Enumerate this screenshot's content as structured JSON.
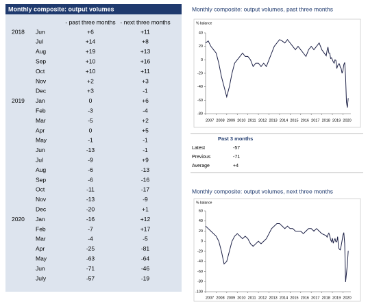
{
  "table": {
    "title": "Monthly composite: output volumes",
    "columns": [
      "- past three months",
      "- next three months"
    ],
    "rows": [
      {
        "year": "2018",
        "month": "Jun",
        "past": "+6",
        "next": "+11"
      },
      {
        "month": "Jul",
        "past": "+14",
        "next": "+8"
      },
      {
        "month": "Aug",
        "past": "+19",
        "next": "+13"
      },
      {
        "month": "Sep",
        "past": "+10",
        "next": "+16"
      },
      {
        "month": "Oct",
        "past": "+10",
        "next": "+11"
      },
      {
        "month": "Nov",
        "past": "+2",
        "next": "+3"
      },
      {
        "month": "Dec",
        "past": "+3",
        "next": "-1"
      },
      {
        "year": "2019",
        "month": "Jan",
        "past": "0",
        "next": "+6"
      },
      {
        "month": "Feb",
        "past": "-3",
        "next": "-4"
      },
      {
        "month": "Mar",
        "past": "-5",
        "next": "+2"
      },
      {
        "month": "Apr",
        "past": "0",
        "next": "+5"
      },
      {
        "month": "May",
        "past": "-1",
        "next": "-1"
      },
      {
        "month": "Jun",
        "past": "-13",
        "next": "-1"
      },
      {
        "month": "Jul",
        "past": "-9",
        "next": "+9"
      },
      {
        "month": "Aug",
        "past": "-6",
        "next": "-13"
      },
      {
        "month": "Sep",
        "past": "-6",
        "next": "-16"
      },
      {
        "month": "Oct",
        "past": "-11",
        "next": "-17"
      },
      {
        "month": "Nov",
        "past": "-13",
        "next": "-9"
      },
      {
        "month": "Dec",
        "past": "-20",
        "next": "+1"
      },
      {
        "year": "2020",
        "month": "Jan",
        "past": "-16",
        "next": "+12"
      },
      {
        "month": "Feb",
        "past": "-7",
        "next": "+17"
      },
      {
        "month": "Mar",
        "past": "-4",
        "next": "-5"
      },
      {
        "month": "Apr",
        "past": "-25",
        "next": "-81"
      },
      {
        "month": "May",
        "past": "-63",
        "next": "-64"
      },
      {
        "month": "Jun",
        "past": "-71",
        "next": "-46"
      },
      {
        "month": "July",
        "past": "-57",
        "next": "-19"
      }
    ]
  },
  "summary": {
    "title": "Past 3 months",
    "rows": [
      {
        "label": "Latest",
        "value": "-57"
      },
      {
        "label": "Previous",
        "value": "-71"
      },
      {
        "label": "Average",
        "value": "+4"
      }
    ]
  },
  "chart_data": [
    {
      "type": "line",
      "title": "Monthly composite: output volumes, past three months",
      "y_label": "% balance",
      "color": "#1b1f45",
      "x": [
        2007,
        2007.25,
        2007.5,
        2007.75,
        2008,
        2008.25,
        2008.5,
        2008.75,
        2009,
        2009.25,
        2009.5,
        2009.75,
        2010,
        2010.25,
        2010.5,
        2010.75,
        2011,
        2011.25,
        2011.5,
        2011.75,
        2012,
        2012.25,
        2012.5,
        2012.75,
        2013,
        2013.25,
        2013.5,
        2013.75,
        2014,
        2014.25,
        2014.5,
        2014.75,
        2015,
        2015.25,
        2015.5,
        2015.75,
        2016,
        2016.25,
        2016.5,
        2016.75,
        2017,
        2017.25,
        2017.5,
        2017.75,
        2018,
        2018.417,
        2018.5,
        2018.583,
        2018.667,
        2018.75,
        2018.833,
        2018.917,
        2019,
        2019.083,
        2019.167,
        2019.25,
        2019.333,
        2019.417,
        2019.5,
        2019.583,
        2019.667,
        2019.75,
        2019.833,
        2019.917,
        2020,
        2020.083,
        2020.167,
        2020.25,
        2020.333,
        2020.417,
        2020.5
      ],
      "values": [
        25,
        28,
        20,
        15,
        10,
        -5,
        -25,
        -40,
        -55,
        -40,
        -20,
        -5,
        0,
        5,
        10,
        5,
        5,
        0,
        -10,
        -5,
        -5,
        -10,
        -5,
        -10,
        0,
        10,
        20,
        25,
        30,
        28,
        25,
        30,
        25,
        20,
        15,
        20,
        15,
        10,
        5,
        15,
        20,
        15,
        20,
        25,
        15,
        6,
        14,
        19,
        10,
        10,
        2,
        3,
        0,
        -3,
        -5,
        0,
        -1,
        -13,
        -9,
        -6,
        -6,
        -11,
        -13,
        -20,
        -16,
        -7,
        -4,
        -25,
        -63,
        -71,
        -57
      ],
      "xlim": [
        2007,
        2020.75
      ],
      "xticks": [
        2007,
        2008,
        2009,
        2010,
        2011,
        2012,
        2013,
        2014,
        2015,
        2016,
        2017,
        2018,
        2019,
        2020
      ],
      "ylim": [
        -80,
        40
      ],
      "yticks": [
        40,
        20,
        0,
        -20,
        -40,
        -60,
        -80
      ]
    },
    {
      "type": "line",
      "title": "Monthly composite: output volumes, next three months",
      "y_label": "% balance",
      "color": "#1b1f45",
      "x": [
        2007,
        2007.25,
        2007.5,
        2007.75,
        2008,
        2008.25,
        2008.5,
        2008.75,
        2009,
        2009.25,
        2009.5,
        2009.75,
        2010,
        2010.25,
        2010.5,
        2010.75,
        2011,
        2011.25,
        2011.5,
        2011.75,
        2012,
        2012.25,
        2012.5,
        2012.75,
        2013,
        2013.25,
        2013.5,
        2013.75,
        2014,
        2014.25,
        2014.5,
        2014.75,
        2015,
        2015.25,
        2015.5,
        2015.75,
        2016,
        2016.25,
        2016.5,
        2016.75,
        2017,
        2017.25,
        2017.5,
        2017.75,
        2018,
        2018.417,
        2018.5,
        2018.583,
        2018.667,
        2018.75,
        2018.833,
        2018.917,
        2019,
        2019.083,
        2019.167,
        2019.25,
        2019.333,
        2019.417,
        2019.5,
        2019.583,
        2019.667,
        2019.75,
        2019.833,
        2019.917,
        2020,
        2020.083,
        2020.167,
        2020.25,
        2020.333,
        2020.417,
        2020.5
      ],
      "values": [
        30,
        25,
        20,
        15,
        10,
        0,
        -20,
        -45,
        -40,
        -20,
        0,
        10,
        15,
        10,
        5,
        10,
        5,
        -5,
        -10,
        -5,
        0,
        -5,
        0,
        5,
        15,
        25,
        30,
        35,
        35,
        30,
        25,
        30,
        25,
        25,
        20,
        20,
        20,
        15,
        20,
        25,
        25,
        20,
        25,
        20,
        15,
        11,
        8,
        13,
        16,
        11,
        3,
        -1,
        6,
        -4,
        2,
        5,
        -1,
        -1,
        9,
        -13,
        -16,
        -17,
        -9,
        1,
        12,
        17,
        -5,
        -81,
        -64,
        -46,
        -19
      ],
      "xlim": [
        2007,
        2020.75
      ],
      "xticks": [
        2007,
        2008,
        2009,
        2010,
        2011,
        2012,
        2013,
        2014,
        2015,
        2016,
        2017,
        2018,
        2019,
        2020
      ],
      "ylim": [
        -100,
        60
      ],
      "yticks": [
        60,
        40,
        20,
        0,
        -20,
        -40,
        -60,
        -80,
        -100
      ]
    }
  ]
}
